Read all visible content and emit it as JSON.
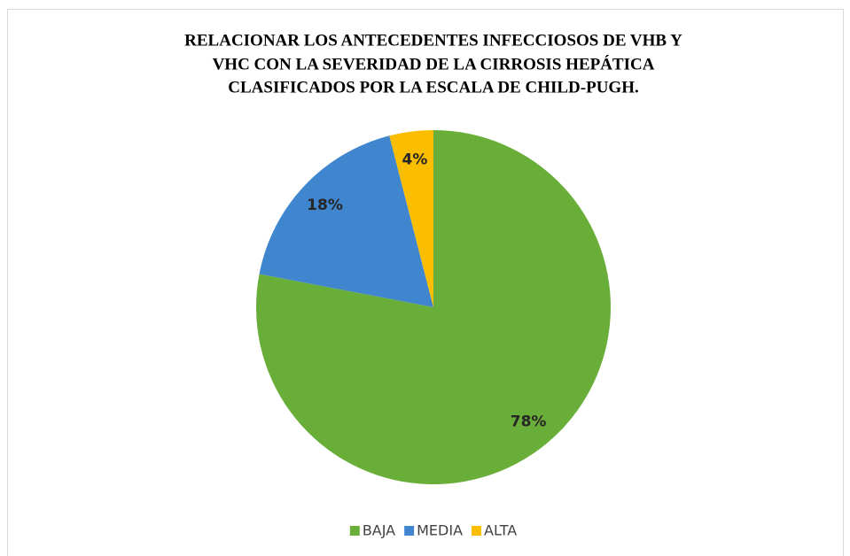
{
  "chart_data": {
    "type": "pie",
    "title": [
      "RELACIONAR LOS ANTECEDENTES INFECCIOSOS DE VHB Y",
      "VHC CON LA SEVERIDAD DE LA CIRROSIS HEPÁTICA",
      "CLASIFICADOS POR LA ESCALA DE CHILD-PUGH."
    ],
    "categories": [
      "BAJA",
      "MEDIA",
      "ALTA"
    ],
    "values": [
      78,
      18,
      4
    ],
    "value_labels": [
      "78%",
      "18%",
      "4%"
    ],
    "colors": [
      "#6aae3a",
      "#3f86cf",
      "#fbbd00"
    ],
    "legend": "bottom"
  }
}
